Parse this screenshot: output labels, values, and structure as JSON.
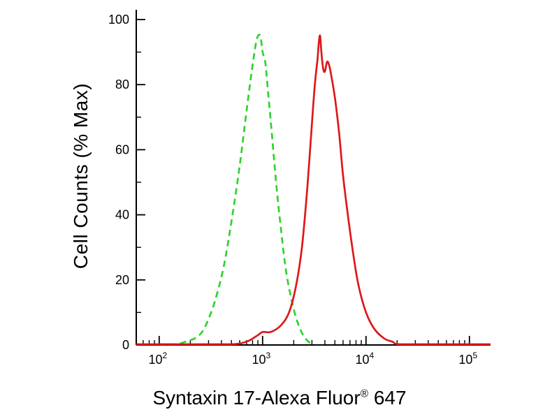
{
  "chart_data": {
    "type": "line",
    "title": "",
    "xlabel": "Syntaxin 17-Alexa Fluor® 647",
    "xlabel_parts": {
      "pre": "Syntaxin 17-Alexa Fluor",
      "sup": "®",
      "post": " 647"
    },
    "ylabel": "Cell Counts (% Max)",
    "x_scale": "log",
    "xlim": [
      60,
      160000
    ],
    "ylim": [
      0,
      103
    ],
    "x_tick_base": "10",
    "x_tick_exponents": [
      2,
      3,
      4,
      5
    ],
    "x_major_ticks": [
      100,
      1000,
      10000,
      100000
    ],
    "y_major_ticks": [
      0,
      20,
      40,
      60,
      80,
      100
    ],
    "y_minor_step": 10,
    "grid": false,
    "legend": "none",
    "axis_color": "#000000",
    "background": "#ffffff",
    "series": [
      {
        "name": "green-dashed-control",
        "line_style": "dashed",
        "color": "#2ed32e",
        "points": [
          [
            100,
            0
          ],
          [
            140,
            0
          ],
          [
            180,
            1
          ],
          [
            220,
            2
          ],
          [
            260,
            4
          ],
          [
            300,
            8
          ],
          [
            350,
            14
          ],
          [
            420,
            24
          ],
          [
            500,
            38
          ],
          [
            600,
            55
          ],
          [
            700,
            72
          ],
          [
            800,
            86
          ],
          [
            880,
            94
          ],
          [
            950,
            95
          ],
          [
            1000,
            90
          ],
          [
            1060,
            87
          ],
          [
            1120,
            79
          ],
          [
            1220,
            66
          ],
          [
            1350,
            50
          ],
          [
            1500,
            36
          ],
          [
            1700,
            22
          ],
          [
            2000,
            11
          ],
          [
            2300,
            5
          ],
          [
            2600,
            2
          ],
          [
            3000,
            0
          ]
        ]
      },
      {
        "name": "red-solid-stained",
        "line_style": "solid",
        "color": "#de1818",
        "points": [
          [
            60,
            0
          ],
          [
            300,
            0
          ],
          [
            500,
            0
          ],
          [
            700,
            1
          ],
          [
            900,
            3
          ],
          [
            1000,
            4
          ],
          [
            1200,
            4
          ],
          [
            1500,
            6
          ],
          [
            1800,
            10
          ],
          [
            2100,
            18
          ],
          [
            2400,
            30
          ],
          [
            2700,
            48
          ],
          [
            3000,
            68
          ],
          [
            3200,
            80
          ],
          [
            3400,
            88
          ],
          [
            3500,
            93
          ],
          [
            3600,
            95
          ],
          [
            3700,
            90
          ],
          [
            3850,
            85
          ],
          [
            4000,
            84
          ],
          [
            4200,
            87
          ],
          [
            4400,
            86
          ],
          [
            4600,
            83
          ],
          [
            5000,
            76
          ],
          [
            5500,
            65
          ],
          [
            6000,
            52
          ],
          [
            6800,
            38
          ],
          [
            7600,
            27
          ],
          [
            8500,
            18
          ],
          [
            10000,
            10
          ],
          [
            12000,
            5
          ],
          [
            15000,
            2
          ],
          [
            18000,
            1
          ],
          [
            22000,
            0
          ],
          [
            60000,
            0
          ],
          [
            160000,
            0
          ]
        ]
      }
    ]
  }
}
